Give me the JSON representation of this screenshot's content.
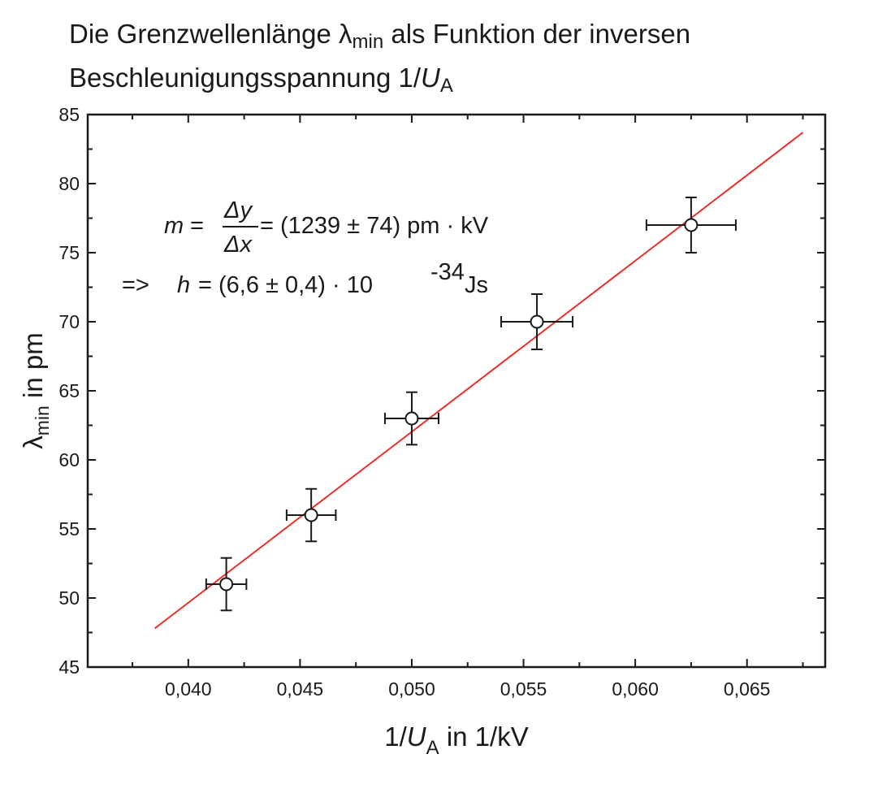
{
  "title": {
    "line1_prefix": "Die Grenzwellenlänge ",
    "line1_symbol": "λ",
    "line1_sub": "min",
    "line1_suffix": " als Funktion der inversen",
    "line2_prefix": "Beschleunigungsspannung 1/",
    "line2_var": "U",
    "line2_sub": "A"
  },
  "annotation": {
    "m_var": "m",
    "m_eq": "=",
    "frac_num": "Δy",
    "frac_den": "Δx",
    "m_value": "= (1239 ± 74) pm · kV",
    "h_arrow": "=>",
    "h_var": "h",
    "h_value_a": "= (6,6 ±  0,4) · 10",
    "h_exp": "-34",
    "h_unit": "Js"
  },
  "chart_data": {
    "type": "scatter",
    "xlabel_prefix": "1/",
    "xlabel_var": "U",
    "xlabel_sub": "A",
    "xlabel_suffix": " in 1/kV",
    "ylabel_symbol": "λ",
    "ylabel_sub": "min",
    "ylabel_suffix": " in pm",
    "xlim": [
      0.0355,
      0.0685
    ],
    "ylim": [
      45,
      85
    ],
    "x_ticks": [
      0.04,
      0.045,
      0.05,
      0.055,
      0.06,
      0.065
    ],
    "x_tick_labels": [
      "0,040",
      "0,045",
      "0,050",
      "0,055",
      "0,060",
      "0,065"
    ],
    "y_ticks": [
      45,
      50,
      55,
      60,
      65,
      70,
      75,
      80,
      85
    ],
    "y_tick_labels": [
      "45",
      "50",
      "55",
      "60",
      "65",
      "70",
      "75",
      "80",
      "85"
    ],
    "points": [
      {
        "x": 0.0417,
        "y": 51,
        "xerr": 0.0009,
        "yerr": 1.9
      },
      {
        "x": 0.0455,
        "y": 56,
        "xerr": 0.0011,
        "yerr": 1.9
      },
      {
        "x": 0.05,
        "y": 63,
        "xerr": 0.0012,
        "yerr": 1.9
      },
      {
        "x": 0.0556,
        "y": 70,
        "xerr": 0.0016,
        "yerr": 2.0
      },
      {
        "x": 0.0625,
        "y": 77,
        "xerr": 0.002,
        "yerr": 2.0
      }
    ],
    "fit_line": {
      "x": [
        0.0385,
        0.0675
      ],
      "y": [
        47.8,
        83.7
      ]
    },
    "fit_color": "#e8312a",
    "marker_color": "#1a1a1a",
    "grid": false
  }
}
